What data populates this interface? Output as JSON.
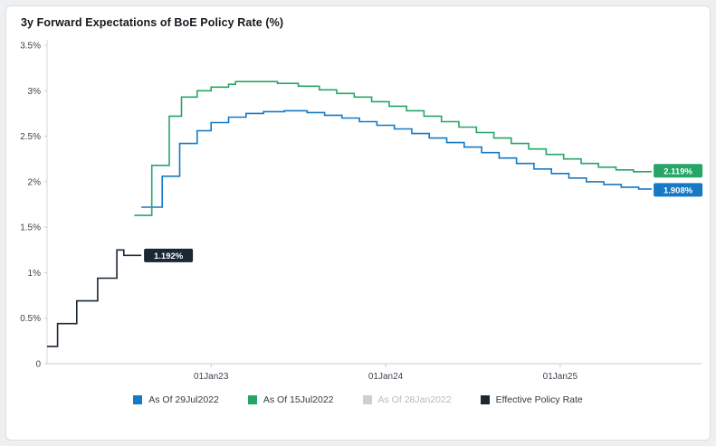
{
  "header": {
    "title": "3y Forward Expectations of BoE Policy Rate (%)"
  },
  "chart_data": {
    "type": "line",
    "step": true,
    "title": "3y Forward Expectations of BoE Policy Rate (%)",
    "xlabel": "",
    "ylabel": "",
    "x_range": [
      2022.06,
      2025.81
    ],
    "y_range": [
      0,
      3.5
    ],
    "grid": false,
    "legend_position": "bottom",
    "x_ticks": [
      {
        "v": 2023,
        "label": "01Jan23"
      },
      {
        "v": 2024,
        "label": "01Jan24"
      },
      {
        "v": 2025,
        "label": "01Jan25"
      }
    ],
    "y_ticks": [
      {
        "v": 0,
        "label": "0"
      },
      {
        "v": 0.5,
        "label": "0.5%"
      },
      {
        "v": 1,
        "label": "1%"
      },
      {
        "v": 1.5,
        "label": "1.5%"
      },
      {
        "v": 2,
        "label": "2%"
      },
      {
        "v": 2.5,
        "label": "2.5%"
      },
      {
        "v": 3,
        "label": "3%"
      },
      {
        "v": 3.5,
        "label": "3.5%"
      }
    ],
    "series": [
      {
        "name": "As Of 29Jul2022",
        "color": "#1579c4",
        "end_label": "1.908%",
        "points": [
          [
            2022.6,
            1.72
          ],
          [
            2022.72,
            2.06
          ],
          [
            2022.82,
            2.42
          ],
          [
            2022.92,
            2.56
          ],
          [
            2023.0,
            2.65
          ],
          [
            2023.1,
            2.71
          ],
          [
            2023.2,
            2.75
          ],
          [
            2023.3,
            2.77
          ],
          [
            2023.42,
            2.78
          ],
          [
            2023.55,
            2.76
          ],
          [
            2023.65,
            2.73
          ],
          [
            2023.75,
            2.7
          ],
          [
            2023.85,
            2.66
          ],
          [
            2023.95,
            2.62
          ],
          [
            2024.05,
            2.58
          ],
          [
            2024.15,
            2.53
          ],
          [
            2024.25,
            2.48
          ],
          [
            2024.35,
            2.43
          ],
          [
            2024.45,
            2.38
          ],
          [
            2024.55,
            2.32
          ],
          [
            2024.65,
            2.26
          ],
          [
            2024.75,
            2.2
          ],
          [
            2024.85,
            2.14
          ],
          [
            2024.95,
            2.09
          ],
          [
            2025.05,
            2.04
          ],
          [
            2025.15,
            2.0
          ],
          [
            2025.25,
            1.97
          ],
          [
            2025.35,
            1.94
          ],
          [
            2025.45,
            1.92
          ],
          [
            2025.52,
            1.91
          ]
        ]
      },
      {
        "name": "As Of 15Jul2022",
        "color": "#27a567",
        "end_label": "2.119%",
        "points": [
          [
            2022.56,
            1.63
          ],
          [
            2022.66,
            2.18
          ],
          [
            2022.76,
            2.72
          ],
          [
            2022.83,
            2.93
          ],
          [
            2022.92,
            3.0
          ],
          [
            2023.0,
            3.04
          ],
          [
            2023.1,
            3.07
          ],
          [
            2023.14,
            3.1
          ],
          [
            2023.38,
            3.08
          ],
          [
            2023.5,
            3.05
          ],
          [
            2023.62,
            3.01
          ],
          [
            2023.72,
            2.97
          ],
          [
            2023.82,
            2.93
          ],
          [
            2023.92,
            2.88
          ],
          [
            2024.02,
            2.83
          ],
          [
            2024.12,
            2.78
          ],
          [
            2024.22,
            2.72
          ],
          [
            2024.32,
            2.66
          ],
          [
            2024.42,
            2.6
          ],
          [
            2024.52,
            2.54
          ],
          [
            2024.62,
            2.48
          ],
          [
            2024.72,
            2.42
          ],
          [
            2024.82,
            2.36
          ],
          [
            2024.92,
            2.3
          ],
          [
            2025.02,
            2.25
          ],
          [
            2025.12,
            2.2
          ],
          [
            2025.22,
            2.16
          ],
          [
            2025.32,
            2.13
          ],
          [
            2025.42,
            2.11
          ],
          [
            2025.52,
            2.12
          ]
        ]
      },
      {
        "name": "As Of 28Jan2022",
        "color": "#ccd0d4",
        "muted": true,
        "points": []
      },
      {
        "name": "Effective Policy Rate",
        "color": "#1b2733",
        "end_label": "1.192%",
        "points": [
          [
            2022.06,
            0.19
          ],
          [
            2022.12,
            0.44
          ],
          [
            2022.23,
            0.69
          ],
          [
            2022.35,
            0.94
          ],
          [
            2022.46,
            1.25
          ],
          [
            2022.5,
            1.19
          ],
          [
            2022.6,
            1.19
          ]
        ]
      }
    ]
  }
}
